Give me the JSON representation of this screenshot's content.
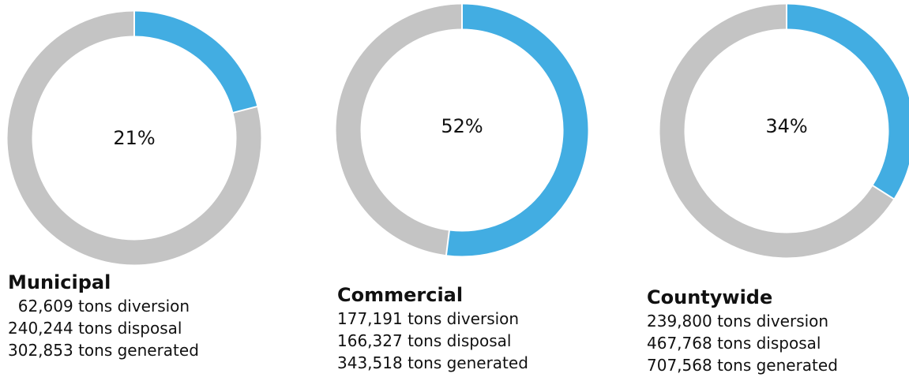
{
  "colors": {
    "diversion": "#42ade2",
    "remainder": "#c4c4c4"
  },
  "chart_data": [
    {
      "type": "pie",
      "title": "Municipal",
      "center_label": "21%",
      "percent": 21,
      "stats": [
        "  62,609 tons diversion",
        "240,244 tons disposal",
        "302,853 tons generated"
      ]
    },
    {
      "type": "pie",
      "title": "Commercial",
      "center_label": "52%",
      "percent": 52,
      "stats": [
        "177,191 tons diversion",
        "166,327 tons disposal",
        "343,518 tons generated"
      ]
    },
    {
      "type": "pie",
      "title": "Countywide",
      "center_label": "34%",
      "percent": 34,
      "stats": [
        "239,800 tons diversion",
        "467,768 tons disposal",
        "707,568 tons generated"
      ]
    }
  ]
}
